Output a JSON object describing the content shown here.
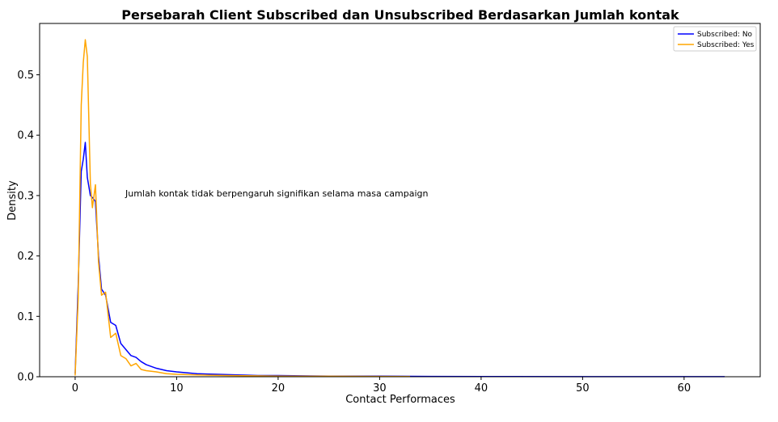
{
  "chart_data": {
    "type": "line",
    "title": "Persebarah Client Subscribed dan Unsubscribed Berdasarkan Jumlah kontak",
    "xlabel": "Contact Performaces",
    "ylabel": "Density",
    "xlim": [
      -3.5,
      67.5
    ],
    "ylim": [
      0,
      0.585
    ],
    "xticks": [
      0,
      10,
      20,
      30,
      40,
      50,
      60
    ],
    "yticks": [
      0.0,
      0.1,
      0.2,
      0.3,
      0.4,
      0.5
    ],
    "xtick_labels": [
      "0",
      "10",
      "20",
      "30",
      "40",
      "50",
      "60"
    ],
    "ytick_labels": [
      "0.0",
      "0.1",
      "0.2",
      "0.3",
      "0.4",
      "0.5"
    ],
    "legend_position": "top-right",
    "grid": false,
    "annotation": {
      "text": "Jumlah kontak tidak berpengaruh signifikan selama masa campaign",
      "x": 5,
      "y": 0.3
    },
    "series": [
      {
        "name": "Subscribed: No",
        "color": "#0000ff",
        "x": [
          0,
          0.3,
          0.6,
          0.8,
          1.0,
          1.2,
          1.5,
          1.8,
          2.0,
          2.3,
          2.6,
          3.0,
          3.5,
          4.0,
          4.5,
          5.0,
          5.5,
          6.0,
          6.5,
          7.0,
          8.0,
          9.0,
          10.0,
          12.0,
          14.0,
          16.0,
          18.0,
          20.0,
          25.0,
          30.0,
          35.0,
          40.0,
          50.0,
          60.0,
          64.0
        ],
        "y": [
          0.005,
          0.15,
          0.34,
          0.36,
          0.388,
          0.33,
          0.3,
          0.295,
          0.29,
          0.2,
          0.145,
          0.135,
          0.09,
          0.085,
          0.055,
          0.045,
          0.035,
          0.032,
          0.025,
          0.02,
          0.014,
          0.01,
          0.008,
          0.005,
          0.004,
          0.003,
          0.002,
          0.002,
          0.001,
          0.001,
          0.0005,
          0.0003,
          0.0002,
          0.0001,
          0.0001
        ]
      },
      {
        "name": "Subscribed: Yes",
        "color": "#ffa500",
        "x": [
          0,
          0.3,
          0.6,
          0.8,
          1.0,
          1.2,
          1.5,
          1.7,
          2.0,
          2.3,
          2.6,
          3.0,
          3.5,
          4.0,
          4.5,
          5.0,
          5.5,
          6.0,
          6.5,
          7.0,
          8.0,
          9.0,
          10.0,
          12.0,
          15.0,
          20.0,
          25.0,
          30.0,
          33.0
        ],
        "y": [
          0.002,
          0.13,
          0.45,
          0.52,
          0.558,
          0.53,
          0.32,
          0.28,
          0.318,
          0.19,
          0.135,
          0.14,
          0.065,
          0.072,
          0.035,
          0.03,
          0.018,
          0.022,
          0.012,
          0.01,
          0.008,
          0.005,
          0.004,
          0.003,
          0.002,
          0.001,
          0.0008,
          0.0005,
          0.0003
        ]
      }
    ]
  }
}
